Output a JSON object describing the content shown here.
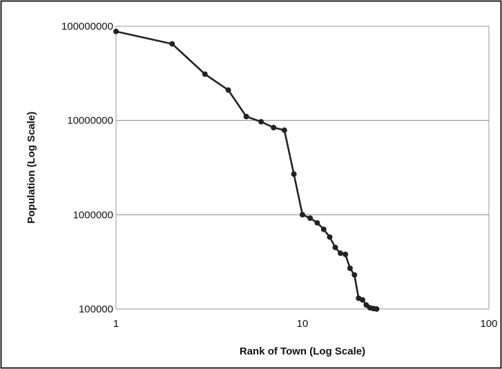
{
  "chart_data": {
    "type": "line",
    "title": "",
    "xlabel": "Rank of Town (Log Scale)",
    "ylabel": "Population (Log Scale)",
    "x_scale": "log",
    "y_scale": "log",
    "xlim": [
      1,
      100
    ],
    "ylim": [
      100000,
      100000000
    ],
    "x_ticks": [
      "1",
      "10",
      "100"
    ],
    "y_ticks": [
      "100000000",
      "10000000",
      "1000000",
      "100000"
    ],
    "grid": "horizontal",
    "legend": "none",
    "line_color": "#222222",
    "series": [
      {
        "x": [
          1,
          2,
          3,
          4,
          5,
          6,
          7,
          8,
          9,
          10,
          11,
          12,
          13,
          14,
          15,
          16,
          17,
          18,
          19,
          20,
          21,
          22,
          23,
          24,
          25
        ],
        "y": [
          88000000,
          65000000,
          31000000,
          21000000,
          11000000,
          9700000,
          8400000,
          7900000,
          2700000,
          1000000,
          920000,
          820000,
          700000,
          580000,
          450000,
          390000,
          380000,
          270000,
          230000,
          130000,
          125000,
          110000,
          103000,
          101000,
          100000
        ]
      }
    ]
  }
}
